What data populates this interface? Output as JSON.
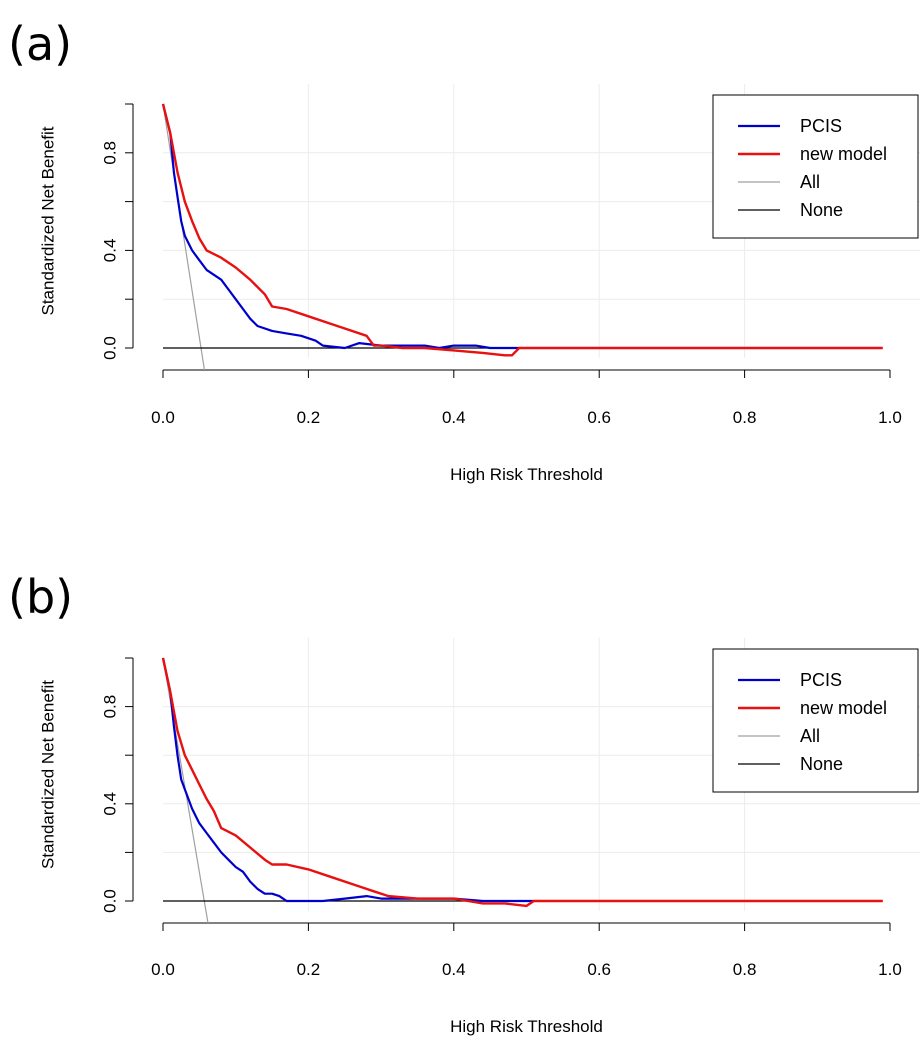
{
  "chart_data": [
    {
      "type": "line",
      "panel_label": "(a)",
      "xlabel": "High Risk Threshold",
      "ylabel": "Standardized Net Benefit",
      "xlim": [
        0,
        1
      ],
      "ylim": [
        0,
        1
      ],
      "x_ticks": [
        "0.0",
        "0.2",
        "0.4",
        "0.6",
        "0.8",
        "1.0"
      ],
      "y_ticks": [
        "0.0",
        "0.4",
        "0.8"
      ],
      "grid": true,
      "legend_position": "top-right",
      "series": [
        {
          "name": "PCIS",
          "color": "#0000cc",
          "width": 2.2,
          "points": [
            [
              0,
              1
            ],
            [
              0.01,
              0.88
            ],
            [
              0.015,
              0.72
            ],
            [
              0.02,
              0.62
            ],
            [
              0.025,
              0.52
            ],
            [
              0.03,
              0.46
            ],
            [
              0.04,
              0.4
            ],
            [
              0.05,
              0.36
            ],
            [
              0.06,
              0.32
            ],
            [
              0.07,
              0.3
            ],
            [
              0.08,
              0.28
            ],
            [
              0.09,
              0.24
            ],
            [
              0.1,
              0.2
            ],
            [
              0.11,
              0.16
            ],
            [
              0.12,
              0.12
            ],
            [
              0.13,
              0.09
            ],
            [
              0.15,
              0.07
            ],
            [
              0.17,
              0.06
            ],
            [
              0.19,
              0.05
            ],
            [
              0.21,
              0.03
            ],
            [
              0.22,
              0.01
            ],
            [
              0.25,
              0.0
            ],
            [
              0.27,
              0.02
            ],
            [
              0.3,
              0.01
            ],
            [
              0.33,
              0.01
            ],
            [
              0.36,
              0.01
            ],
            [
              0.38,
              0.0
            ],
            [
              0.4,
              0.01
            ],
            [
              0.43,
              0.01
            ],
            [
              0.45,
              0.0
            ],
            [
              0.49,
              0.0
            ]
          ]
        },
        {
          "name": "new model",
          "color": "#e81010",
          "width": 2.4,
          "points": [
            [
              0,
              1
            ],
            [
              0.01,
              0.88
            ],
            [
              0.02,
              0.72
            ],
            [
              0.03,
              0.6
            ],
            [
              0.04,
              0.52
            ],
            [
              0.05,
              0.45
            ],
            [
              0.06,
              0.4
            ],
            [
              0.08,
              0.37
            ],
            [
              0.1,
              0.33
            ],
            [
              0.12,
              0.28
            ],
            [
              0.14,
              0.22
            ],
            [
              0.15,
              0.17
            ],
            [
              0.17,
              0.16
            ],
            [
              0.2,
              0.13
            ],
            [
              0.23,
              0.1
            ],
            [
              0.25,
              0.08
            ],
            [
              0.28,
              0.05
            ],
            [
              0.29,
              0.01
            ],
            [
              0.3,
              0.01
            ],
            [
              0.33,
              0.0
            ],
            [
              0.36,
              0.0
            ],
            [
              0.4,
              -0.01
            ],
            [
              0.44,
              -0.02
            ],
            [
              0.47,
              -0.03
            ],
            [
              0.48,
              -0.03
            ],
            [
              0.49,
              0.0
            ],
            [
              0.99,
              0.0
            ]
          ]
        },
        {
          "name": "All",
          "color": "#a0a0a0",
          "width": 1.2,
          "points": [
            [
              0,
              1
            ],
            [
              0.058,
              -0.11
            ]
          ]
        },
        {
          "name": "None",
          "color": "#000000",
          "width": 1.2,
          "points": [
            [
              0,
              0
            ],
            [
              0.99,
              0
            ]
          ]
        }
      ]
    },
    {
      "type": "line",
      "panel_label": "(b)",
      "xlabel": "High Risk Threshold",
      "ylabel": "Standardized Net Benefit",
      "xlim": [
        0,
        1
      ],
      "ylim": [
        0,
        1
      ],
      "x_ticks": [
        "0.0",
        "0.2",
        "0.4",
        "0.6",
        "0.8",
        "1.0"
      ],
      "y_ticks": [
        "0.0",
        "0.4",
        "0.8"
      ],
      "grid": true,
      "legend_position": "top-right",
      "series": [
        {
          "name": "PCIS",
          "color": "#0000cc",
          "width": 2.2,
          "points": [
            [
              0,
              1
            ],
            [
              0.01,
              0.86
            ],
            [
              0.015,
              0.72
            ],
            [
              0.02,
              0.6
            ],
            [
              0.025,
              0.5
            ],
            [
              0.03,
              0.46
            ],
            [
              0.04,
              0.38
            ],
            [
              0.05,
              0.32
            ],
            [
              0.06,
              0.28
            ],
            [
              0.07,
              0.24
            ],
            [
              0.08,
              0.2
            ],
            [
              0.09,
              0.17
            ],
            [
              0.1,
              0.14
            ],
            [
              0.11,
              0.12
            ],
            [
              0.12,
              0.08
            ],
            [
              0.13,
              0.05
            ],
            [
              0.14,
              0.03
            ],
            [
              0.15,
              0.03
            ],
            [
              0.16,
              0.02
            ],
            [
              0.17,
              0.0
            ],
            [
              0.22,
              0.0
            ],
            [
              0.25,
              0.01
            ],
            [
              0.28,
              0.02
            ],
            [
              0.3,
              0.01
            ],
            [
              0.33,
              0.01
            ],
            [
              0.36,
              0.01
            ],
            [
              0.4,
              0.01
            ],
            [
              0.44,
              0.0
            ],
            [
              0.51,
              0.0
            ]
          ]
        },
        {
          "name": "new model",
          "color": "#e81010",
          "width": 2.4,
          "points": [
            [
              0,
              1
            ],
            [
              0.01,
              0.86
            ],
            [
              0.02,
              0.7
            ],
            [
              0.03,
              0.6
            ],
            [
              0.04,
              0.54
            ],
            [
              0.05,
              0.48
            ],
            [
              0.06,
              0.42
            ],
            [
              0.07,
              0.37
            ],
            [
              0.08,
              0.3
            ],
            [
              0.1,
              0.27
            ],
            [
              0.12,
              0.22
            ],
            [
              0.14,
              0.17
            ],
            [
              0.15,
              0.15
            ],
            [
              0.17,
              0.15
            ],
            [
              0.2,
              0.13
            ],
            [
              0.23,
              0.1
            ],
            [
              0.26,
              0.07
            ],
            [
              0.29,
              0.04
            ],
            [
              0.31,
              0.02
            ],
            [
              0.35,
              0.01
            ],
            [
              0.4,
              0.01
            ],
            [
              0.44,
              -0.01
            ],
            [
              0.47,
              -0.01
            ],
            [
              0.5,
              -0.02
            ],
            [
              0.51,
              0.0
            ],
            [
              0.99,
              0.0
            ]
          ]
        },
        {
          "name": "All",
          "color": "#a0a0a0",
          "width": 1.2,
          "points": [
            [
              0,
              1
            ],
            [
              0.063,
              -0.11
            ]
          ]
        },
        {
          "name": "None",
          "color": "#000000",
          "width": 1.2,
          "points": [
            [
              0,
              0
            ],
            [
              0.99,
              0
            ]
          ]
        }
      ]
    }
  ]
}
